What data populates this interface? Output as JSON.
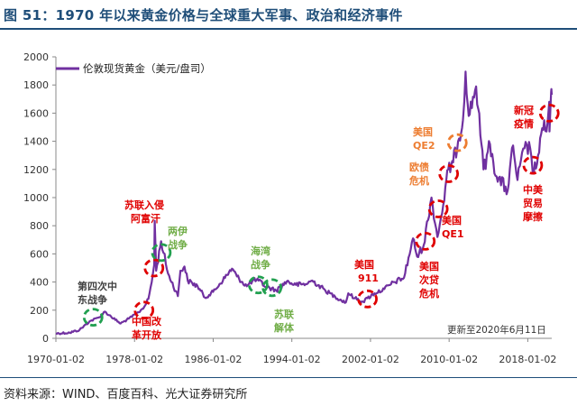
{
  "figure": {
    "title": "图 51：1970 年以来黄金价格与全球重大军事、政治和经济事件",
    "source": "资料来源：WIND、百度百科、光大证券研究所"
  },
  "colors": {
    "title": "#1f4e79",
    "series": "#7030a0",
    "red": "#e00000",
    "green": "#22a050",
    "orange": "#ed7d31"
  },
  "chart_data": {
    "type": "line",
    "title": "",
    "xlabel": "",
    "ylabel": "",
    "ylim": [
      0,
      2000
    ],
    "xlim": [
      "1970-01-02",
      "2020-06-11"
    ],
    "x_ticks": [
      "1970-01-02",
      "1978-01-02",
      "1986-01-02",
      "1994-01-02",
      "2002-01-02",
      "2010-01-02",
      "2018-01-02"
    ],
    "y_ticks": [
      0,
      200,
      400,
      600,
      800,
      1000,
      1200,
      1400,
      1600,
      1800,
      2000
    ],
    "grid": false,
    "legend": "top-left",
    "note": "更新至2020年6月11日",
    "series": [
      {
        "name": "伦敦现货黄金（美元/盘司）",
        "color": "#7030a0",
        "points": [
          [
            "1970-01-02",
            35
          ],
          [
            "1971-06-01",
            40
          ],
          [
            "1972-06-01",
            60
          ],
          [
            "1973-06-01",
            120
          ],
          [
            "1974-06-01",
            150
          ],
          [
            "1974-12-30",
            190
          ],
          [
            "1975-06-01",
            165
          ],
          [
            "1976-08-01",
            105
          ],
          [
            "1977-06-01",
            140
          ],
          [
            "1978-06-01",
            185
          ],
          [
            "1979-01-01",
            225
          ],
          [
            "1979-06-01",
            280
          ],
          [
            "1979-10-01",
            400
          ],
          [
            "1979-12-31",
            520
          ],
          [
            "1980-01-21",
            835
          ],
          [
            "1980-03-15",
            480
          ],
          [
            "1980-09-15",
            690
          ],
          [
            "1981-06-01",
            460
          ],
          [
            "1982-06-01",
            300
          ],
          [
            "1982-09-01",
            480
          ],
          [
            "1983-02-01",
            510
          ],
          [
            "1983-06-01",
            410
          ],
          [
            "1984-06-01",
            370
          ],
          [
            "1985-03-01",
            290
          ],
          [
            "1986-01-01",
            330
          ],
          [
            "1987-06-01",
            450
          ],
          [
            "1987-12-01",
            495
          ],
          [
            "1988-06-01",
            440
          ],
          [
            "1989-06-01",
            370
          ],
          [
            "1990-01-01",
            410
          ],
          [
            "1990-08-15",
            410
          ],
          [
            "1991-06-01",
            365
          ],
          [
            "1992-06-01",
            340
          ],
          [
            "1993-07-01",
            405
          ],
          [
            "1994-06-01",
            380
          ],
          [
            "1995-06-01",
            385
          ],
          [
            "1996-02-01",
            410
          ],
          [
            "1997-06-01",
            340
          ],
          [
            "1998-06-01",
            295
          ],
          [
            "1999-07-01",
            255
          ],
          [
            "1999-10-01",
            320
          ],
          [
            "2000-06-01",
            285
          ],
          [
            "2001-04-01",
            260
          ],
          [
            "2001-09-12",
            285
          ],
          [
            "2002-06-01",
            320
          ],
          [
            "2003-06-01",
            350
          ],
          [
            "2004-06-01",
            400
          ],
          [
            "2005-06-01",
            430
          ],
          [
            "2006-05-01",
            710
          ],
          [
            "2006-10-01",
            580
          ],
          [
            "2007-06-01",
            660
          ],
          [
            "2008-03-17",
            1000
          ],
          [
            "2008-10-24",
            720
          ],
          [
            "2009-06-01",
            950
          ],
          [
            "2009-12-01",
            1200
          ],
          [
            "2010-06-01",
            1250
          ],
          [
            "2010-12-01",
            1400
          ],
          [
            "2011-06-01",
            1550
          ],
          [
            "2011-09-06",
            1895
          ],
          [
            "2011-12-30",
            1580
          ],
          [
            "2012-10-01",
            1790
          ],
          [
            "2013-04-15",
            1380
          ],
          [
            "2013-07-01",
            1200
          ],
          [
            "2014-03-01",
            1380
          ],
          [
            "2014-11-01",
            1150
          ],
          [
            "2015-12-17",
            1050
          ],
          [
            "2016-07-06",
            1370
          ],
          [
            "2016-12-15",
            1125
          ],
          [
            "2017-09-01",
            1350
          ],
          [
            "2018-04-01",
            1350
          ],
          [
            "2018-08-15",
            1170
          ],
          [
            "2019-03-01",
            1320
          ],
          [
            "2019-09-04",
            1550
          ],
          [
            "2019-12-01",
            1470
          ],
          [
            "2020-03-09",
            1680
          ],
          [
            "2020-03-19",
            1470
          ],
          [
            "2020-05-18",
            1750
          ],
          [
            "2020-06-11",
            1730
          ]
        ]
      }
    ],
    "annotations": [
      {
        "label": "第四次中东战争",
        "date": "1973-10-15",
        "value": 150,
        "color": "green"
      },
      {
        "label": "中国改革开放",
        "date": "1978-12-18",
        "value": 200,
        "color": "red"
      },
      {
        "label": "苏联入侵阿富汗",
        "date": "1979-12-24",
        "value": 500,
        "color": "red"
      },
      {
        "label": "两伊战争",
        "date": "1980-09-22",
        "value": 610,
        "color": "green"
      },
      {
        "label": "海湾战争",
        "date": "1990-08-02",
        "value": 380,
        "color": "green"
      },
      {
        "label": "苏联解体",
        "date": "1991-12-26",
        "value": 360,
        "color": "green"
      },
      {
        "label": "美国911",
        "date": "2001-09-11",
        "value": 280,
        "color": "red"
      },
      {
        "label": "美国次贷危机",
        "date": "2007-08-01",
        "value": 690,
        "color": "red"
      },
      {
        "label": "美国QE1",
        "date": "2008-11-25",
        "value": 920,
        "color": "red"
      },
      {
        "label": "欧债危机",
        "date": "2009-12-15",
        "value": 1170,
        "color": "red"
      },
      {
        "label": "美国QE2",
        "date": "2010-11-03",
        "value": 1390,
        "color": "orange"
      },
      {
        "label": "中美贸易摩擦",
        "date": "2018-07-06",
        "value": 1230,
        "color": "red"
      },
      {
        "label": "新冠疫情",
        "date": "2020-03-11",
        "value": 1600,
        "color": "red"
      }
    ]
  },
  "labels": {
    "legend": "伦敦现货黄金（美元/盘司）",
    "note": "更新至2020年6月11日",
    "events": {
      "mideast_l1": "第四次中",
      "mideast_l2": "东战争",
      "reform_l1": "中国改",
      "reform_l2": "革开放",
      "afghan_l1": "苏联入侵",
      "afghan_l2": "阿富汗",
      "iraniraq_l1": "两伊",
      "iraniraq_l2": "战争",
      "gulf_l1": "海湾",
      "gulf_l2": "战争",
      "ussr_l1": "苏联",
      "ussr_l2": "解体",
      "us911_l1": "美国",
      "us911_l2": "911",
      "subprime_l1": "美国",
      "subprime_l2": "次贷",
      "subprime_l3": "危机",
      "qe1_l1": "美国",
      "qe1_l2": "QE1",
      "euro_l1": "欧债",
      "euro_l2": "危机",
      "qe2_l1": "美国",
      "qe2_l2": "QE2",
      "trade_l1": "中美",
      "trade_l2": "贸易",
      "trade_l3": "摩擦",
      "covid_l1": "新冠",
      "covid_l2": "疫情"
    }
  }
}
